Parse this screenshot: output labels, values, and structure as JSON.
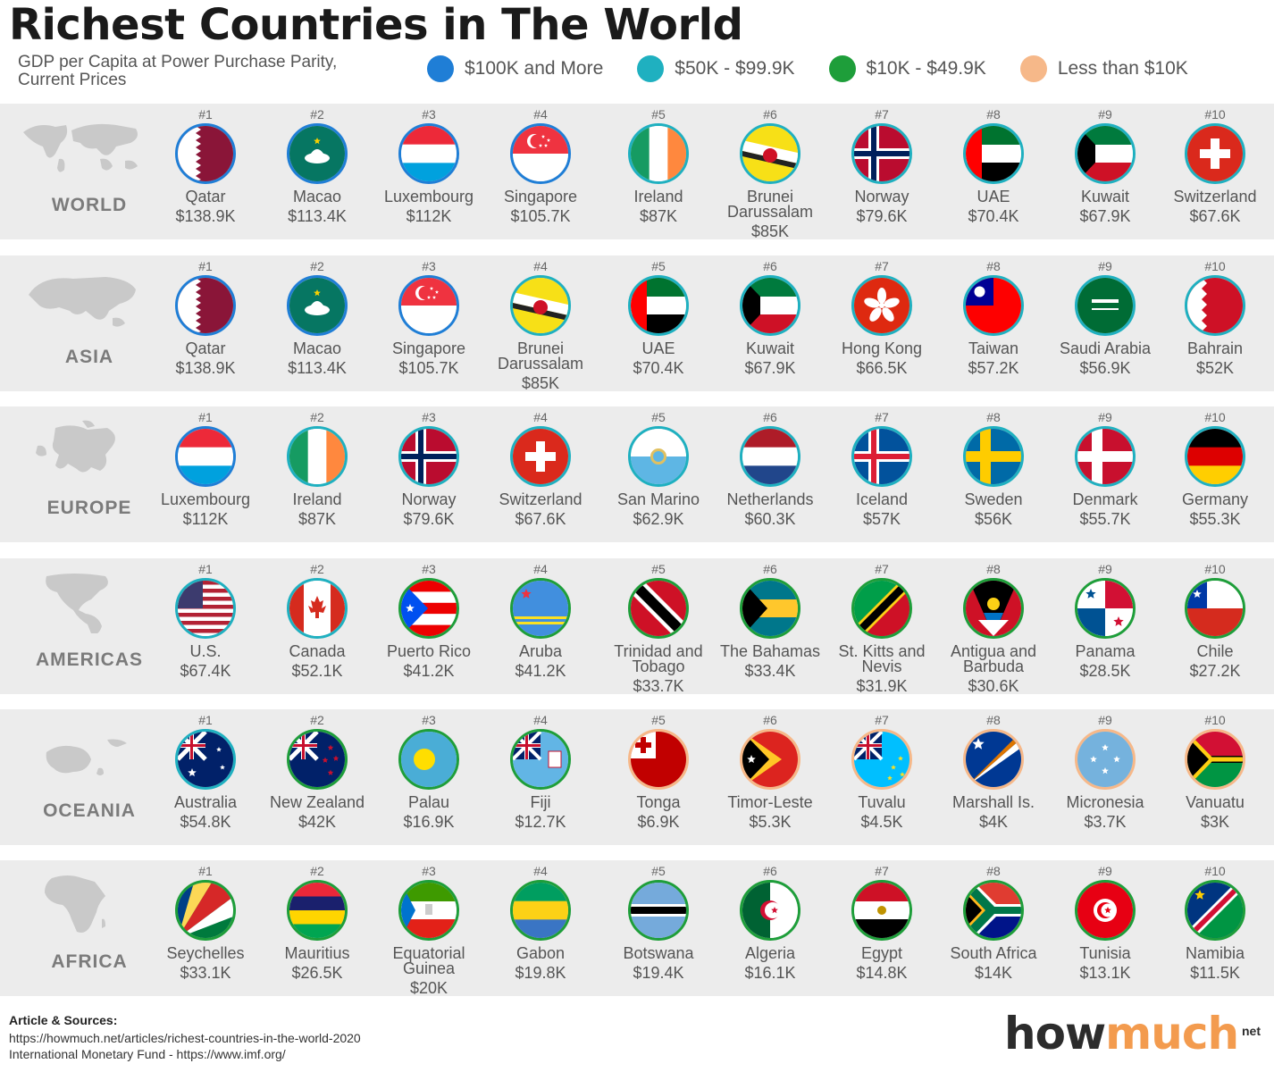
{
  "header": {
    "title": "Richest Countries in The World",
    "subtitle_line1": "GDP per Capita at Power Purchase Parity,",
    "subtitle_line2": "Current Prices"
  },
  "legend": [
    {
      "label": "$100K and More",
      "color": "#1f7ed6"
    },
    {
      "label": "$50K - $99.9K",
      "color": "#1fb0c0"
    },
    {
      "label": "$10K - $49.9K",
      "color": "#1e9e3a"
    },
    {
      "label": "Less than $10K",
      "color": "#f6b889"
    }
  ],
  "regions": [
    {
      "name": "WORLD",
      "countries": [
        {
          "rank": "#1",
          "name": "Qatar",
          "gdp": "$138.9K",
          "tier": 0,
          "flag": "qatar"
        },
        {
          "rank": "#2",
          "name": "Macao",
          "gdp": "$113.4K",
          "tier": 0,
          "flag": "macao"
        },
        {
          "rank": "#3",
          "name": "Luxembourg",
          "gdp": "$112K",
          "tier": 0,
          "flag": "luxembourg"
        },
        {
          "rank": "#4",
          "name": "Singapore",
          "gdp": "$105.7K",
          "tier": 0,
          "flag": "singapore"
        },
        {
          "rank": "#5",
          "name": "Ireland",
          "gdp": "$87K",
          "tier": 1,
          "flag": "ireland"
        },
        {
          "rank": "#6",
          "name": "Brunei Darussalam",
          "gdp": "$85K",
          "tier": 1,
          "flag": "brunei"
        },
        {
          "rank": "#7",
          "name": "Norway",
          "gdp": "$79.6K",
          "tier": 1,
          "flag": "norway"
        },
        {
          "rank": "#8",
          "name": "UAE",
          "gdp": "$70.4K",
          "tier": 1,
          "flag": "uae"
        },
        {
          "rank": "#9",
          "name": "Kuwait",
          "gdp": "$67.9K",
          "tier": 1,
          "flag": "kuwait"
        },
        {
          "rank": "#10",
          "name": "Switzerland",
          "gdp": "$67.6K",
          "tier": 1,
          "flag": "switzerland"
        }
      ]
    },
    {
      "name": "ASIA",
      "countries": [
        {
          "rank": "#1",
          "name": "Qatar",
          "gdp": "$138.9K",
          "tier": 0,
          "flag": "qatar"
        },
        {
          "rank": "#2",
          "name": "Macao",
          "gdp": "$113.4K",
          "tier": 0,
          "flag": "macao"
        },
        {
          "rank": "#3",
          "name": "Singapore",
          "gdp": "$105.7K",
          "tier": 0,
          "flag": "singapore"
        },
        {
          "rank": "#4",
          "name": "Brunei Darussalam",
          "gdp": "$85K",
          "tier": 1,
          "flag": "brunei"
        },
        {
          "rank": "#5",
          "name": "UAE",
          "gdp": "$70.4K",
          "tier": 1,
          "flag": "uae"
        },
        {
          "rank": "#6",
          "name": "Kuwait",
          "gdp": "$67.9K",
          "tier": 1,
          "flag": "kuwait"
        },
        {
          "rank": "#7",
          "name": "Hong Kong",
          "gdp": "$66.5K",
          "tier": 1,
          "flag": "hongkong"
        },
        {
          "rank": "#8",
          "name": "Taiwan",
          "gdp": "$57.2K",
          "tier": 1,
          "flag": "taiwan"
        },
        {
          "rank": "#9",
          "name": "Saudi Arabia",
          "gdp": "$56.9K",
          "tier": 1,
          "flag": "saudi"
        },
        {
          "rank": "#10",
          "name": "Bahrain",
          "gdp": "$52K",
          "tier": 1,
          "flag": "bahrain"
        }
      ]
    },
    {
      "name": "EUROPE",
      "countries": [
        {
          "rank": "#1",
          "name": "Luxembourg",
          "gdp": "$112K",
          "tier": 0,
          "flag": "luxembourg"
        },
        {
          "rank": "#2",
          "name": "Ireland",
          "gdp": "$87K",
          "tier": 1,
          "flag": "ireland"
        },
        {
          "rank": "#3",
          "name": "Norway",
          "gdp": "$79.6K",
          "tier": 1,
          "flag": "norway"
        },
        {
          "rank": "#4",
          "name": "Switzerland",
          "gdp": "$67.6K",
          "tier": 1,
          "flag": "switzerland"
        },
        {
          "rank": "#5",
          "name": "San Marino",
          "gdp": "$62.9K",
          "tier": 1,
          "flag": "sanmarino"
        },
        {
          "rank": "#6",
          "name": "Netherlands",
          "gdp": "$60.3K",
          "tier": 1,
          "flag": "netherlands"
        },
        {
          "rank": "#7",
          "name": "Iceland",
          "gdp": "$57K",
          "tier": 1,
          "flag": "iceland"
        },
        {
          "rank": "#8",
          "name": "Sweden",
          "gdp": "$56K",
          "tier": 1,
          "flag": "sweden"
        },
        {
          "rank": "#9",
          "name": "Denmark",
          "gdp": "$55.7K",
          "tier": 1,
          "flag": "denmark"
        },
        {
          "rank": "#10",
          "name": "Germany",
          "gdp": "$55.3K",
          "tier": 1,
          "flag": "germany"
        }
      ]
    },
    {
      "name": "AMERICAS",
      "countries": [
        {
          "rank": "#1",
          "name": "U.S.",
          "gdp": "$67.4K",
          "tier": 1,
          "flag": "usa"
        },
        {
          "rank": "#2",
          "name": "Canada",
          "gdp": "$52.1K",
          "tier": 1,
          "flag": "canada"
        },
        {
          "rank": "#3",
          "name": "Puerto Rico",
          "gdp": "$41.2K",
          "tier": 2,
          "flag": "puertorico"
        },
        {
          "rank": "#4",
          "name": "Aruba",
          "gdp": "$41.2K",
          "tier": 2,
          "flag": "aruba"
        },
        {
          "rank": "#5",
          "name": "Trinidad and Tobago",
          "gdp": "$33.7K",
          "tier": 2,
          "flag": "trinidad"
        },
        {
          "rank": "#6",
          "name": "The Bahamas",
          "gdp": "$33.4K",
          "tier": 2,
          "flag": "bahamas"
        },
        {
          "rank": "#7",
          "name": "St. Kitts and Nevis",
          "gdp": "$31.9K",
          "tier": 2,
          "flag": "stkitts"
        },
        {
          "rank": "#8",
          "name": "Antigua and Barbuda",
          "gdp": "$30.6K",
          "tier": 2,
          "flag": "antigua"
        },
        {
          "rank": "#9",
          "name": "Panama",
          "gdp": "$28.5K",
          "tier": 2,
          "flag": "panama"
        },
        {
          "rank": "#10",
          "name": "Chile",
          "gdp": "$27.2K",
          "tier": 2,
          "flag": "chile"
        }
      ]
    },
    {
      "name": "OCEANIA",
      "countries": [
        {
          "rank": "#1",
          "name": "Australia",
          "gdp": "$54.8K",
          "tier": 1,
          "flag": "australia"
        },
        {
          "rank": "#2",
          "name": "New Zealand",
          "gdp": "$42K",
          "tier": 2,
          "flag": "newzealand"
        },
        {
          "rank": "#3",
          "name": "Palau",
          "gdp": "$16.9K",
          "tier": 2,
          "flag": "palau"
        },
        {
          "rank": "#4",
          "name": "Fiji",
          "gdp": "$12.7K",
          "tier": 2,
          "flag": "fiji"
        },
        {
          "rank": "#5",
          "name": "Tonga",
          "gdp": "$6.9K",
          "tier": 3,
          "flag": "tonga"
        },
        {
          "rank": "#6",
          "name": "Timor-Leste",
          "gdp": "$5.3K",
          "tier": 3,
          "flag": "timor"
        },
        {
          "rank": "#7",
          "name": "Tuvalu",
          "gdp": "$4.5K",
          "tier": 3,
          "flag": "tuvalu"
        },
        {
          "rank": "#8",
          "name": "Marshall Is.",
          "gdp": "$4K",
          "tier": 3,
          "flag": "marshall"
        },
        {
          "rank": "#9",
          "name": "Micronesia",
          "gdp": "$3.7K",
          "tier": 3,
          "flag": "micronesia"
        },
        {
          "rank": "#10",
          "name": "Vanuatu",
          "gdp": "$3K",
          "tier": 3,
          "flag": "vanuatu"
        }
      ]
    },
    {
      "name": "AFRICA",
      "countries": [
        {
          "rank": "#1",
          "name": "Seychelles",
          "gdp": "$33.1K",
          "tier": 2,
          "flag": "seychelles"
        },
        {
          "rank": "#2",
          "name": "Mauritius",
          "gdp": "$26.5K",
          "tier": 2,
          "flag": "mauritius"
        },
        {
          "rank": "#3",
          "name": "Equatorial Guinea",
          "gdp": "$20K",
          "tier": 2,
          "flag": "eqguinea"
        },
        {
          "rank": "#4",
          "name": "Gabon",
          "gdp": "$19.8K",
          "tier": 2,
          "flag": "gabon"
        },
        {
          "rank": "#5",
          "name": "Botswana",
          "gdp": "$19.4K",
          "tier": 2,
          "flag": "botswana"
        },
        {
          "rank": "#6",
          "name": "Algeria",
          "gdp": "$16.1K",
          "tier": 2,
          "flag": "algeria"
        },
        {
          "rank": "#7",
          "name": "Egypt",
          "gdp": "$14.8K",
          "tier": 2,
          "flag": "egypt"
        },
        {
          "rank": "#8",
          "name": "South Africa",
          "gdp": "$14K",
          "tier": 2,
          "flag": "southafrica"
        },
        {
          "rank": "#9",
          "name": "Tunisia",
          "gdp": "$13.1K",
          "tier": 2,
          "flag": "tunisia"
        },
        {
          "rank": "#10",
          "name": "Namibia",
          "gdp": "$11.5K",
          "tier": 2,
          "flag": "namibia"
        }
      ]
    }
  ],
  "sources": {
    "heading": "Article & Sources:",
    "line1": "https://howmuch.net/articles/richest-countries-in-the-world-2020",
    "line2": "International Monetary Fund - https://www.imf.org/"
  },
  "logo": {
    "part1": "how",
    "part2": "much",
    "suffix": "net"
  }
}
